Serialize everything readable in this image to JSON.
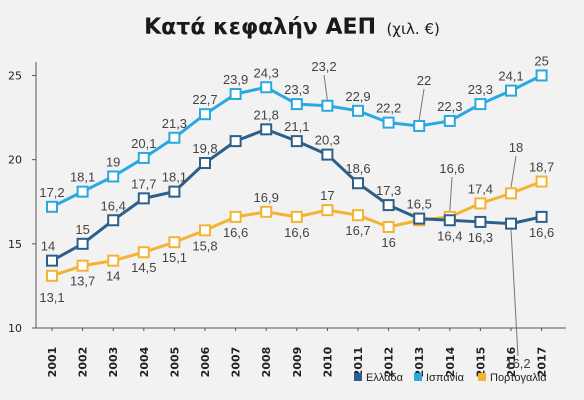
{
  "chart_data": {
    "type": "line",
    "title": "Κατά κεφαλήν ΑΕΠ",
    "subtitle": "(χιλ. €)",
    "xlabel": "",
    "ylabel": "",
    "x": [
      "2001",
      "2002",
      "2003",
      "2004",
      "2005",
      "2006",
      "2007",
      "2008",
      "2009",
      "2010",
      "2011",
      "2012",
      "2013",
      "2014",
      "2015",
      "2016",
      "2017"
    ],
    "ylim": [
      10,
      25.8
    ],
    "yticks": [
      10,
      15,
      20,
      25
    ],
    "grid": false,
    "legend_position": "bottom-right",
    "series": [
      {
        "name": "Ελλάδα",
        "color": "#2d5f8b",
        "values": [
          14,
          15,
          16.4,
          17.7,
          18.1,
          19.8,
          21.1,
          21.8,
          21.1,
          20.3,
          18.6,
          17.3,
          16.5,
          16.4,
          16.3,
          16.2,
          16.6
        ],
        "labels": [
          "14",
          "15",
          "16,4",
          "17,7",
          "18,1",
          "19,8",
          "",
          "21,8",
          "21,1",
          "20,3",
          "18,6",
          "17,3",
          "16,5",
          "16,4",
          "16,3",
          "16,2",
          "16,6"
        ]
      },
      {
        "name": "Ισπανία",
        "color": "#29a9df",
        "values": [
          17.2,
          18.1,
          19,
          20.1,
          21.3,
          22.7,
          23.9,
          24.3,
          23.3,
          23.2,
          22.9,
          22.2,
          22,
          22.3,
          23.3,
          24.1,
          25
        ],
        "labels": [
          "17,2",
          "18,1",
          "19",
          "20,1",
          "21,3",
          "22,7",
          "23,9",
          "24,3",
          "23,3",
          "23,2",
          "22,9",
          "22,2",
          "22",
          "22,3",
          "23,3",
          "24,1",
          "25"
        ]
      },
      {
        "name": "Πορτογαλία",
        "color": "#f5b334",
        "values": [
          13.1,
          13.7,
          14,
          14.5,
          15.1,
          15.8,
          16.6,
          16.9,
          16.6,
          17,
          16.7,
          16,
          16.4,
          16.6,
          17.4,
          18,
          18.7
        ],
        "labels": [
          "13,1",
          "13,7",
          "14",
          "14,5",
          "15,1",
          "15,8",
          "16,6",
          "16,9",
          "16,6",
          "17",
          "16,7",
          "16",
          "",
          "16,6",
          "17,4",
          "18",
          "18,7"
        ]
      }
    ]
  }
}
